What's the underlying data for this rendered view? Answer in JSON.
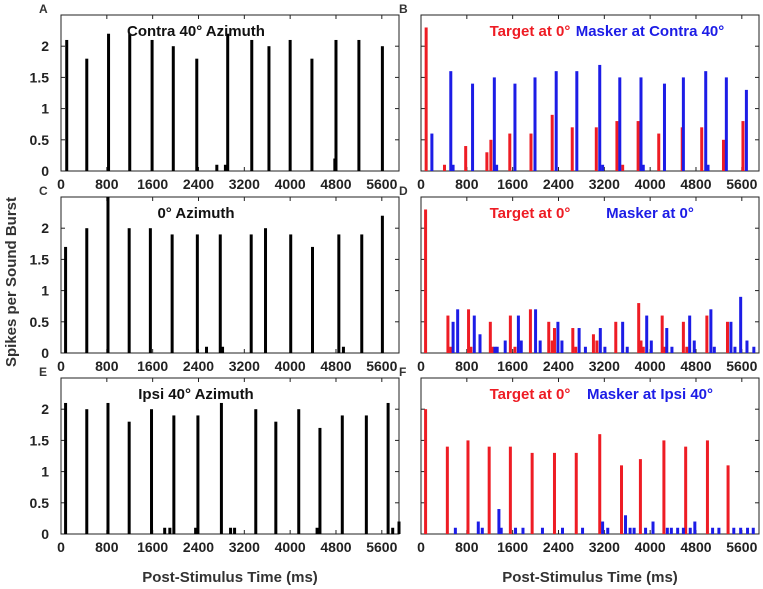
{
  "figure": {
    "ylabel": "Spikes per Sound Burst",
    "xlabel": "Post-Stimulus Time (ms)"
  },
  "colors": {
    "bars": "#000000",
    "target": "#ee1c24",
    "masker": "#1c1ce6",
    "axis": "#222222"
  },
  "chart_data": [
    {
      "id": "A",
      "letter": "A",
      "type": "bar",
      "xlim": [
        0,
        5900
      ],
      "ylim": [
        0,
        2.5
      ],
      "ytick_labels": [
        "0",
        "0.5",
        "1",
        "1.5",
        "2"
      ],
      "title": "Contra 40° Azimuth",
      "title_parts": [],
      "series": [
        {
          "name": "response",
          "color": "#000000",
          "x": [
            100,
            450,
            830,
            1200,
            1590,
            1960,
            2370,
            2720,
            2870,
            2910,
            3330,
            3630,
            4000,
            4380,
            4780,
            4800,
            5200,
            5610
          ],
          "values": [
            2.1,
            1.8,
            2.2,
            2.2,
            2.1,
            2.0,
            1.8,
            0.1,
            0.1,
            2.2,
            2.1,
            2.0,
            2.1,
            1.8,
            0.2,
            2.1,
            2.1,
            2.0
          ]
        }
      ]
    },
    {
      "id": "B",
      "letter": "B",
      "type": "bar",
      "xlim": [
        0,
        5900
      ],
      "ylim": [
        0,
        2.5
      ],
      "ytick_labels": [],
      "title": "",
      "title_parts": [
        {
          "text": "Target at 0°",
          "color": "#ee1c24"
        },
        {
          "text": "Masker at Contra 40°",
          "color": "#1c1ce6"
        }
      ],
      "series": [
        {
          "name": "Target at 0°",
          "color": "#ee1c24",
          "x": [
            90,
            410,
            780,
            1150,
            1220,
            1550,
            1920,
            2290,
            2640,
            3060,
            3420,
            3520,
            3790,
            4150,
            4560,
            4900,
            5280,
            5620
          ],
          "values": [
            2.3,
            0.1,
            0.4,
            0.3,
            0.5,
            0.6,
            0.6,
            0.9,
            0.7,
            0.7,
            0.8,
            0.1,
            0.8,
            0.6,
            0.7,
            0.7,
            0.5,
            0.8
          ]
        },
        {
          "name": "Masker at Contra 40°",
          "color": "#1c1ce6",
          "x": [
            190,
            520,
            560,
            900,
            1280,
            1320,
            1640,
            1990,
            2360,
            2720,
            3120,
            3170,
            3470,
            3840,
            3880,
            4250,
            4580,
            4970,
            5010,
            5330,
            5680
          ],
          "values": [
            0.6,
            1.6,
            0.1,
            1.4,
            1.5,
            0.1,
            1.4,
            1.5,
            1.6,
            1.6,
            1.7,
            0.1,
            1.5,
            1.5,
            0.1,
            1.4,
            1.5,
            1.6,
            0.1,
            1.5,
            1.3
          ]
        }
      ]
    },
    {
      "id": "C",
      "letter": "C",
      "type": "bar",
      "xlim": [
        0,
        5900
      ],
      "ylim": [
        0,
        2.5
      ],
      "ytick_labels": [
        "0",
        "0.5",
        "1",
        "1.5",
        "2"
      ],
      "title": "0° Azimuth",
      "title_parts": [],
      "series": [
        {
          "name": "response",
          "color": "#000000",
          "x": [
            80,
            450,
            820,
            1190,
            1560,
            1940,
            2380,
            2540,
            2780,
            2820,
            3320,
            3570,
            4010,
            4390,
            4850,
            4930,
            5250,
            5610
          ],
          "values": [
            1.7,
            2.0,
            2.5,
            2.0,
            2.0,
            1.9,
            1.9,
            0.1,
            1.9,
            0.1,
            1.9,
            2.0,
            1.9,
            1.7,
            1.9,
            0.1,
            1.9,
            2.2
          ]
        }
      ]
    },
    {
      "id": "D",
      "letter": "D",
      "type": "bar",
      "xlim": [
        0,
        5900
      ],
      "ylim": [
        0,
        2.5
      ],
      "ytick_labels": [],
      "title": "",
      "title_parts": [
        {
          "text": "Target at 0°",
          "color": "#ee1c24"
        },
        {
          "text": "Masker at 0°",
          "color": "#1c1ce6"
        }
      ],
      "series": [
        {
          "name": "Target at 0°",
          "color": "#ee1c24",
          "x": [
            80,
            470,
            520,
            830,
            870,
            1210,
            1250,
            1560,
            1640,
            1910,
            2230,
            2290,
            2330,
            2650,
            2700,
            3010,
            3070,
            3400,
            3800,
            3840,
            3880,
            4210,
            4260,
            4580,
            4640,
            4990,
            5350
          ],
          "values": [
            2.3,
            0.6,
            0.1,
            0.7,
            0.1,
            0.5,
            0.1,
            0.6,
            0.1,
            0.7,
            0.5,
            0.2,
            0.4,
            0.4,
            0.1,
            0.3,
            0.2,
            0.5,
            0.8,
            0.2,
            0.1,
            0.6,
            0.1,
            0.5,
            0.1,
            0.6,
            0.5
          ]
        },
        {
          "name": "Masker at 0°",
          "color": "#1c1ce6",
          "x": [
            560,
            640,
            930,
            1030,
            1290,
            1330,
            1470,
            1700,
            1750,
            2000,
            2080,
            2390,
            2460,
            2760,
            2870,
            3130,
            3210,
            3520,
            3600,
            3940,
            4020,
            4290,
            4380,
            4690,
            4770,
            5060,
            5120,
            5410,
            5480,
            5580,
            5690,
            5810
          ],
          "values": [
            0.5,
            0.7,
            0.6,
            0.3,
            0.1,
            0.1,
            0.2,
            0.6,
            0.2,
            0.7,
            0.2,
            0.5,
            0.2,
            0.4,
            0.1,
            0.4,
            0.1,
            0.5,
            0.1,
            0.6,
            0.2,
            0.4,
            0.1,
            0.6,
            0.2,
            0.7,
            0.1,
            0.5,
            0.1,
            0.9,
            0.2,
            0.1
          ]
        }
      ]
    },
    {
      "id": "E",
      "letter": "E",
      "type": "bar",
      "xlim": [
        0,
        5900
      ],
      "ylim": [
        0,
        2.5
      ],
      "ytick_labels": [
        "0",
        "0.5",
        "1",
        "1.5",
        "2"
      ],
      "title": "Ipsi 40° Azimuth",
      "title_parts": [],
      "series": [
        {
          "name": "response",
          "color": "#000000",
          "x": [
            80,
            450,
            820,
            1190,
            1580,
            1810,
            1900,
            1970,
            2350,
            2390,
            2800,
            2960,
            3030,
            3400,
            3750,
            4150,
            4470,
            4520,
            4910,
            5330,
            5710,
            5790,
            5900
          ],
          "values": [
            2.1,
            2.0,
            2.1,
            1.8,
            2.0,
            0.1,
            0.1,
            1.9,
            0.1,
            1.9,
            2.1,
            0.1,
            0.1,
            2.0,
            1.8,
            2.0,
            0.1,
            1.7,
            1.9,
            1.9,
            2.1,
            0.1,
            0.2
          ]
        }
      ]
    },
    {
      "id": "F",
      "letter": "F",
      "type": "bar",
      "xlim": [
        0,
        5900
      ],
      "ylim": [
        0,
        2.5
      ],
      "ytick_labels": [],
      "title": "",
      "title_parts": [
        {
          "text": "Target at 0°",
          "color": "#ee1c24"
        },
        {
          "text": "Masker at Ipsi 40°",
          "color": "#1c1ce6"
        }
      ],
      "series": [
        {
          "name": "Target at 0°",
          "color": "#ee1c24",
          "x": [
            80,
            460,
            820,
            1190,
            1560,
            1940,
            2330,
            2710,
            3120,
            3500,
            3830,
            4240,
            4620,
            5000,
            5360
          ],
          "values": [
            2.0,
            1.4,
            1.5,
            1.4,
            1.4,
            1.3,
            1.3,
            1.3,
            1.6,
            1.1,
            1.2,
            1.5,
            1.4,
            1.5,
            1.1
          ]
        },
        {
          "name": "Masker at Ipsi 40°",
          "color": "#1c1ce6",
          "x": [
            600,
            1000,
            1070,
            1360,
            1400,
            1650,
            1780,
            2120,
            2470,
            2820,
            3170,
            3260,
            3570,
            3650,
            3720,
            3920,
            4050,
            4300,
            4370,
            4480,
            4580,
            4700,
            4780,
            5090,
            5200,
            5460,
            5580,
            5700,
            5800
          ],
          "values": [
            0.1,
            0.2,
            0.1,
            0.4,
            0.1,
            0.1,
            0.1,
            0.1,
            0.1,
            0.1,
            0.2,
            0.1,
            0.3,
            0.1,
            0.1,
            0.1,
            0.2,
            0.1,
            0.1,
            0.1,
            0.1,
            0.1,
            0.2,
            0.1,
            0.1,
            0.1,
            0.1,
            0.1,
            0.1
          ]
        }
      ]
    }
  ],
  "x_ticks": {
    "values": [
      0,
      800,
      1600,
      2400,
      3200,
      4000,
      4800,
      5600
    ],
    "labels": [
      "0",
      "800",
      "1600",
      "2400",
      "3200",
      "4000",
      "4800",
      "5600"
    ]
  }
}
